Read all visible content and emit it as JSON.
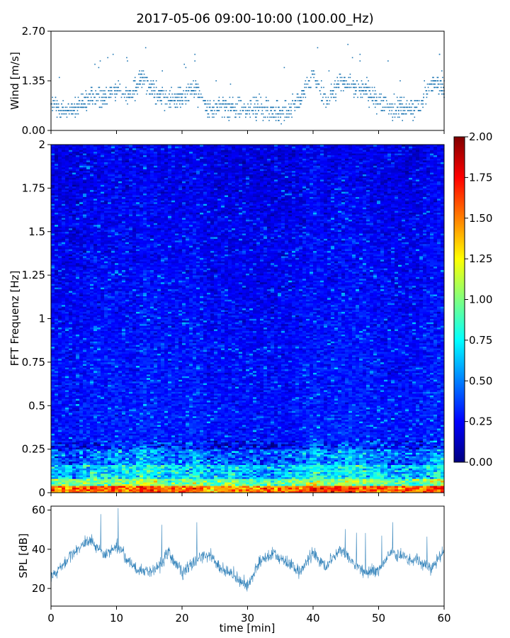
{
  "figure": {
    "title": "2017-05-06 09:00-10:00 (100.00_Hz)"
  },
  "colors": {
    "wind_marker": "#1f77b4",
    "spl_line": "#1f77b4",
    "colormap": [
      "#00007f",
      "#0000ff",
      "#007fff",
      "#00ffff",
      "#7fff7f",
      "#ffff00",
      "#ff7f00",
      "#ff0000",
      "#7f0000"
    ]
  },
  "chart_data": [
    {
      "id": "wind",
      "type": "scatter",
      "ylabel": "Wind [m/s]",
      "ylim": [
        0,
        2.7
      ],
      "xlim": [
        0,
        60
      ],
      "yticks": [
        0.0,
        1.35,
        2.7
      ],
      "ytick_labels": [
        "0.00",
        "1.35",
        "2.70"
      ],
      "x_tick_labels_shown": false,
      "trend": {
        "x": [
          0,
          2,
          4,
          6,
          8,
          10,
          12,
          14,
          16,
          18,
          20,
          22,
          24,
          26,
          28,
          30,
          32,
          34,
          36,
          38,
          40,
          42,
          44,
          46,
          48,
          50,
          52,
          54,
          56,
          58,
          60
        ],
        "y": [
          0.7,
          0.55,
          0.6,
          0.9,
          0.95,
          1.1,
          0.9,
          1.5,
          1.0,
          0.85,
          0.9,
          1.2,
          0.55,
          0.7,
          0.6,
          0.55,
          0.6,
          0.5,
          0.55,
          0.8,
          1.5,
          0.8,
          1.3,
          1.2,
          1.1,
          0.8,
          0.6,
          0.6,
          0.6,
          1.3,
          1.2
        ]
      }
    },
    {
      "id": "spectrogram",
      "type": "heatmap",
      "ylabel": "FFT Frequenz [Hz]",
      "ylim": [
        0,
        2
      ],
      "xlim": [
        0,
        60
      ],
      "yticks": [
        0,
        0.25,
        0.5,
        0.75,
        1,
        1.25,
        1.5,
        1.75,
        2
      ],
      "ytick_labels": [
        "0",
        "0.25",
        "0.5",
        "0.75",
        "1",
        "1.25",
        "1.5",
        "1.75",
        "2"
      ],
      "x_tick_labels_shown": false,
      "colorbar": {
        "range": [
          0,
          2
        ],
        "ticks": [
          0,
          0.25,
          0.5,
          0.75,
          1,
          1.25,
          1.5,
          1.75,
          2
        ],
        "tick_labels": [
          "0.00",
          "0.25",
          "0.50",
          "0.75",
          "1.00",
          "1.25",
          "1.50",
          "1.75",
          "2.00"
        ]
      }
    },
    {
      "id": "spl",
      "type": "line",
      "ylabel": "SPL [dB]",
      "xlabel": "time [min]",
      "ylim": [
        11,
        62
      ],
      "xlim": [
        0,
        60
      ],
      "yticks": [
        20,
        40,
        60
      ],
      "ytick_labels": [
        "20",
        "40",
        "60"
      ],
      "xticks": [
        0,
        10,
        20,
        30,
        40,
        50,
        60
      ],
      "xtick_labels": [
        "0",
        "10",
        "20",
        "30",
        "40",
        "50",
        "60"
      ],
      "trend": {
        "x": [
          0,
          2,
          4,
          6,
          8,
          10,
          12,
          14,
          16,
          18,
          20,
          22,
          24,
          26,
          28,
          30,
          32,
          34,
          36,
          38,
          40,
          42,
          44,
          46,
          48,
          50,
          52,
          54,
          56,
          58,
          60
        ],
        "y": [
          26,
          33,
          40,
          45,
          37,
          42,
          33,
          28,
          30,
          38,
          28,
          34,
          38,
          30,
          27,
          22,
          34,
          38,
          33,
          29,
          38,
          31,
          40,
          34,
          28,
          30,
          39,
          36,
          34,
          30,
          39
        ]
      }
    }
  ]
}
